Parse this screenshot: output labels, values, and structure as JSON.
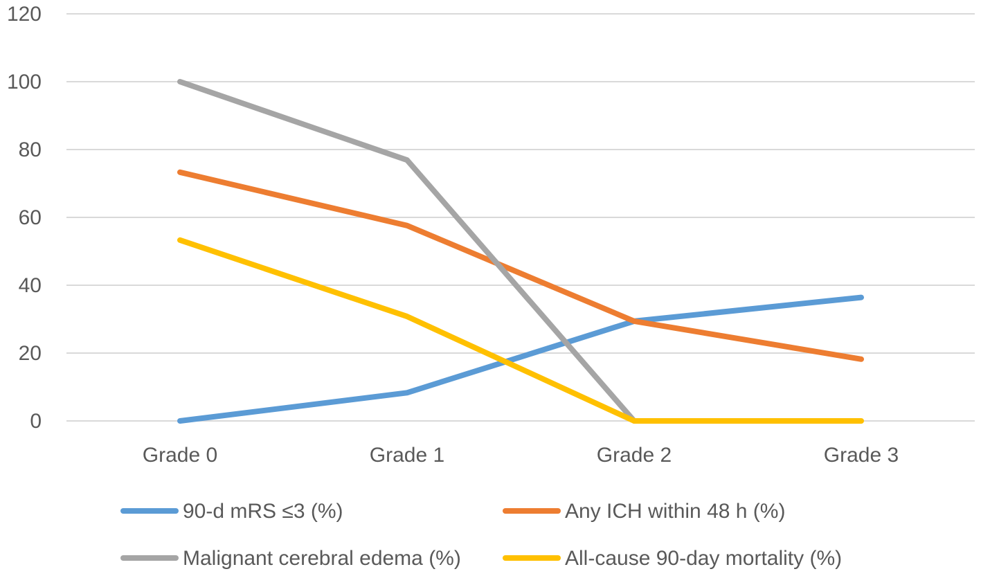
{
  "chart_data": {
    "type": "line",
    "title": "",
    "xlabel": "",
    "ylabel": "",
    "ylim": [
      0,
      120
    ],
    "yticks": [
      "0",
      "20",
      "40",
      "60",
      "80",
      "100",
      "120"
    ],
    "categories": [
      "Grade 0",
      "Grade 1",
      "Grade 2",
      "Grade 3"
    ],
    "grid": true,
    "legend_position": "bottom",
    "series": [
      {
        "name": "90-d mRS ≤3 (%)",
        "color": "#5B9BD5",
        "values": [
          0,
          8.3,
          29.4,
          36.4
        ]
      },
      {
        "name": "Any ICH within 48 h (%)",
        "color": "#ED7D31",
        "values": [
          73.3,
          57.6,
          29.4,
          18.2
        ]
      },
      {
        "name": "Malignant cerebral edema (%)",
        "color": "#A5A5A5",
        "values": [
          100,
          76.9,
          0,
          null
        ]
      },
      {
        "name": "All-cause 90-day mortality (%)",
        "color": "#FFC000",
        "values": [
          53.3,
          30.8,
          0,
          0
        ]
      }
    ]
  }
}
